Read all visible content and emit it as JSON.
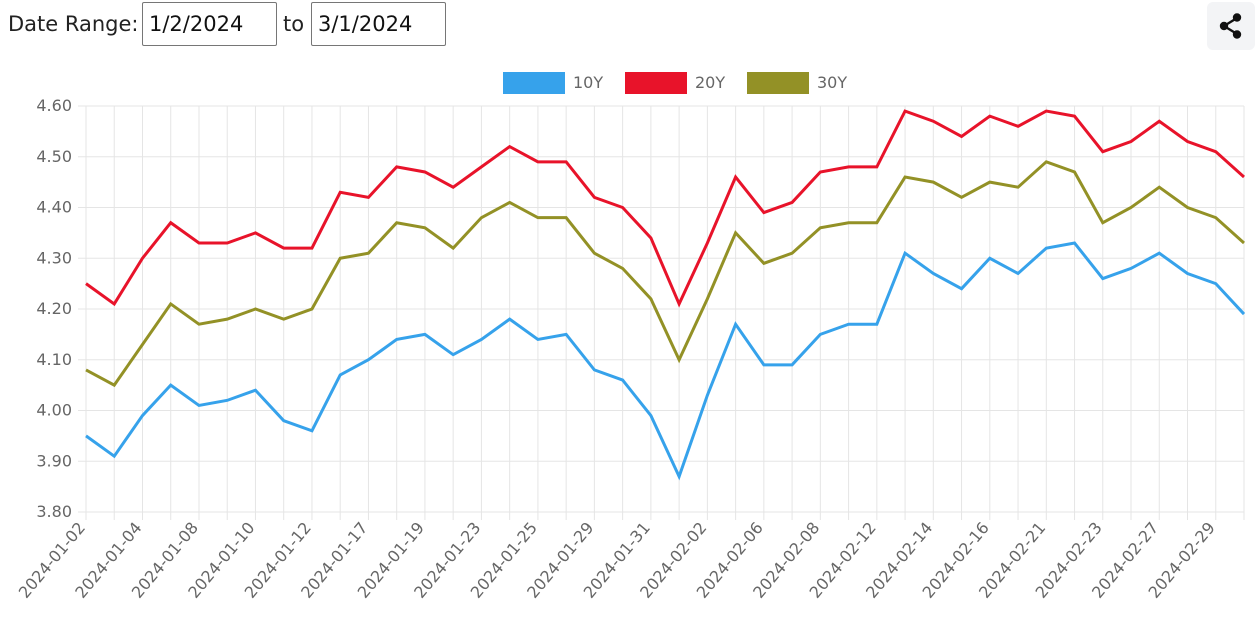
{
  "controls": {
    "range_label": "Date Range:",
    "start_date": "1/2/2024",
    "to_label": "to",
    "end_date": "3/1/2024"
  },
  "share": {
    "icon": "share-icon"
  },
  "chart_data": {
    "type": "line",
    "x": [
      "2024-01-02",
      "2024-01-03",
      "2024-01-04",
      "2024-01-05",
      "2024-01-08",
      "2024-01-09",
      "2024-01-10",
      "2024-01-11",
      "2024-01-12",
      "2024-01-16",
      "2024-01-17",
      "2024-01-18",
      "2024-01-19",
      "2024-01-22",
      "2024-01-23",
      "2024-01-24",
      "2024-01-25",
      "2024-01-26",
      "2024-01-29",
      "2024-01-30",
      "2024-01-31",
      "2024-02-01",
      "2024-02-02",
      "2024-02-05",
      "2024-02-06",
      "2024-02-07",
      "2024-02-08",
      "2024-02-09",
      "2024-02-12",
      "2024-02-13",
      "2024-02-14",
      "2024-02-15",
      "2024-02-16",
      "2024-02-20",
      "2024-02-21",
      "2024-02-22",
      "2024-02-23",
      "2024-02-26",
      "2024-02-27",
      "2024-02-28",
      "2024-02-29",
      "2024-03-01"
    ],
    "x_tick_labels": [
      "2024-01-02",
      "2024-01-04",
      "2024-01-08",
      "2024-01-10",
      "2024-01-12",
      "2024-01-17",
      "2024-01-19",
      "2024-01-23",
      "2024-01-25",
      "2024-01-29",
      "2024-01-31",
      "2024-02-02",
      "2024-02-06",
      "2024-02-08",
      "2024-02-12",
      "2024-02-14",
      "2024-02-16",
      "2024-02-21",
      "2024-02-23",
      "2024-02-27",
      "2024-02-29"
    ],
    "series": [
      {
        "name": "10Y",
        "color": "#36a2eb",
        "values": [
          3.95,
          3.91,
          3.99,
          4.05,
          4.01,
          4.02,
          4.04,
          3.98,
          3.96,
          4.07,
          4.1,
          4.14,
          4.15,
          4.11,
          4.14,
          4.18,
          4.14,
          4.15,
          4.08,
          4.06,
          3.99,
          3.87,
          4.03,
          4.17,
          4.09,
          4.09,
          4.15,
          4.17,
          4.17,
          4.31,
          4.27,
          4.24,
          4.3,
          4.27,
          4.32,
          4.33,
          4.26,
          4.28,
          4.31,
          4.27,
          4.25,
          4.19
        ]
      },
      {
        "name": "20Y",
        "color": "#e8132a",
        "values": [
          4.25,
          4.21,
          4.3,
          4.37,
          4.33,
          4.33,
          4.35,
          4.32,
          4.32,
          4.43,
          4.42,
          4.48,
          4.47,
          4.44,
          4.48,
          4.52,
          4.49,
          4.49,
          4.42,
          4.4,
          4.34,
          4.21,
          4.33,
          4.46,
          4.39,
          4.41,
          4.47,
          4.48,
          4.48,
          4.59,
          4.57,
          4.54,
          4.58,
          4.56,
          4.59,
          4.58,
          4.51,
          4.53,
          4.57,
          4.53,
          4.51,
          4.46
        ]
      },
      {
        "name": "30Y",
        "color": "#939126",
        "values": [
          4.08,
          4.05,
          4.13,
          4.21,
          4.17,
          4.18,
          4.2,
          4.18,
          4.2,
          4.3,
          4.31,
          4.37,
          4.36,
          4.32,
          4.38,
          4.41,
          4.38,
          4.38,
          4.31,
          4.28,
          4.22,
          4.1,
          4.22,
          4.35,
          4.29,
          4.31,
          4.36,
          4.37,
          4.37,
          4.46,
          4.45,
          4.42,
          4.45,
          4.44,
          4.49,
          4.47,
          4.37,
          4.4,
          4.44,
          4.4,
          4.38,
          4.33
        ]
      }
    ],
    "y_ticks": [
      "4.60",
      "4.50",
      "4.40",
      "4.30",
      "4.20",
      "4.10",
      "4.00",
      "3.90",
      "3.80"
    ],
    "ylim": [
      3.8,
      4.6
    ],
    "grid": true,
    "legend_position": "top-center",
    "gridline_color": "#e5e5e5"
  }
}
